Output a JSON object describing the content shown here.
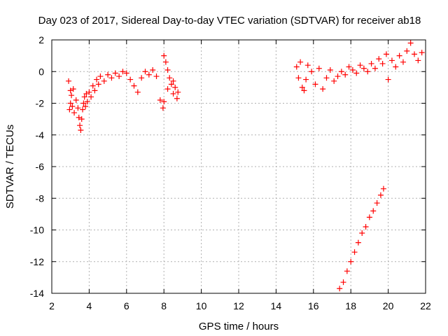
{
  "chart_data": {
    "type": "scatter",
    "title": "Day 023 of 2017, Sidereal Day-to-day VTEC variation (SDTVAR) for receiver ab18",
    "xlabel": "GPS time / hours",
    "ylabel": "SDTVAR / TECUs",
    "xlim": [
      2,
      22
    ],
    "ylim": [
      -14,
      2
    ],
    "xticks": [
      "2",
      "4",
      "6",
      "8",
      "10",
      "12",
      "14",
      "16",
      "18",
      "20",
      "22"
    ],
    "yticks": [
      "2",
      "0",
      "-2",
      "-4",
      "-6",
      "-8",
      "-10",
      "-12",
      "-14"
    ],
    "grid": true,
    "marker": "+",
    "color": "#ff0000",
    "series": [
      {
        "name": "SDTVAR",
        "x": [
          2.9,
          2.95,
          3.0,
          3.0,
          3.05,
          3.1,
          3.15,
          3.2,
          3.3,
          3.4,
          3.45,
          3.5,
          3.55,
          3.6,
          3.65,
          3.7,
          3.75,
          3.8,
          3.85,
          3.9,
          4.0,
          4.1,
          4.2,
          4.3,
          4.4,
          4.5,
          4.6,
          4.8,
          5.0,
          5.2,
          5.4,
          5.6,
          5.8,
          6.0,
          6.2,
          6.4,
          6.6,
          6.8,
          7.0,
          7.2,
          7.4,
          7.6,
          7.8,
          7.95,
          8.0,
          8.1,
          8.2,
          8.3,
          8.4,
          8.5,
          8.6,
          8.7,
          8.75,
          8.5,
          8.2,
          8.0,
          15.1,
          15.2,
          15.3,
          15.4,
          15.5,
          15.6,
          15.7,
          15.9,
          16.1,
          16.3,
          16.5,
          16.7,
          16.9,
          17.1,
          17.3,
          17.5,
          17.7,
          17.9,
          18.1,
          18.3,
          18.5,
          18.7,
          18.9,
          19.1,
          19.3,
          19.5,
          19.7,
          19.9,
          20.0,
          20.2,
          20.4,
          20.6,
          20.8,
          21.0,
          21.2,
          21.4,
          21.6,
          21.8,
          17.4,
          17.6,
          17.8,
          18.0,
          18.2,
          18.4,
          18.6,
          18.8,
          19.0,
          19.2,
          19.4,
          19.6,
          19.75
        ],
        "y": [
          -0.6,
          -2.4,
          -1.2,
          -2.0,
          -1.5,
          -2.2,
          -1.1,
          -2.6,
          -1.8,
          -2.3,
          -2.9,
          -3.4,
          -3.7,
          -3.0,
          -2.4,
          -2.0,
          -1.6,
          -2.2,
          -1.4,
          -1.9,
          -1.3,
          -1.6,
          -0.9,
          -1.2,
          -0.5,
          -0.8,
          -0.3,
          -0.6,
          -0.2,
          -0.4,
          -0.1,
          -0.3,
          0.0,
          -0.1,
          -0.5,
          -0.9,
          -1.3,
          -0.4,
          0.0,
          -0.2,
          0.1,
          -0.3,
          -1.8,
          -2.3,
          1.0,
          0.6,
          0.1,
          -0.4,
          -0.8,
          -1.4,
          -1.0,
          -1.7,
          -1.3,
          -0.6,
          -1.1,
          -1.9,
          0.3,
          -0.4,
          0.6,
          -1.0,
          -1.2,
          -0.5,
          0.4,
          0.0,
          -0.8,
          0.2,
          -1.1,
          -0.4,
          0.1,
          -0.6,
          -0.3,
          0.0,
          -0.2,
          0.3,
          0.1,
          -0.1,
          0.4,
          0.2,
          0.0,
          0.5,
          0.2,
          0.8,
          0.5,
          1.1,
          -0.5,
          0.7,
          0.3,
          1.0,
          0.6,
          1.3,
          1.8,
          1.1,
          0.7,
          1.2,
          -13.7,
          -13.3,
          -12.6,
          -12.0,
          -11.4,
          -10.8,
          -10.2,
          -9.8,
          -9.2,
          -8.8,
          -8.3,
          -7.8,
          -7.4
        ]
      }
    ]
  }
}
